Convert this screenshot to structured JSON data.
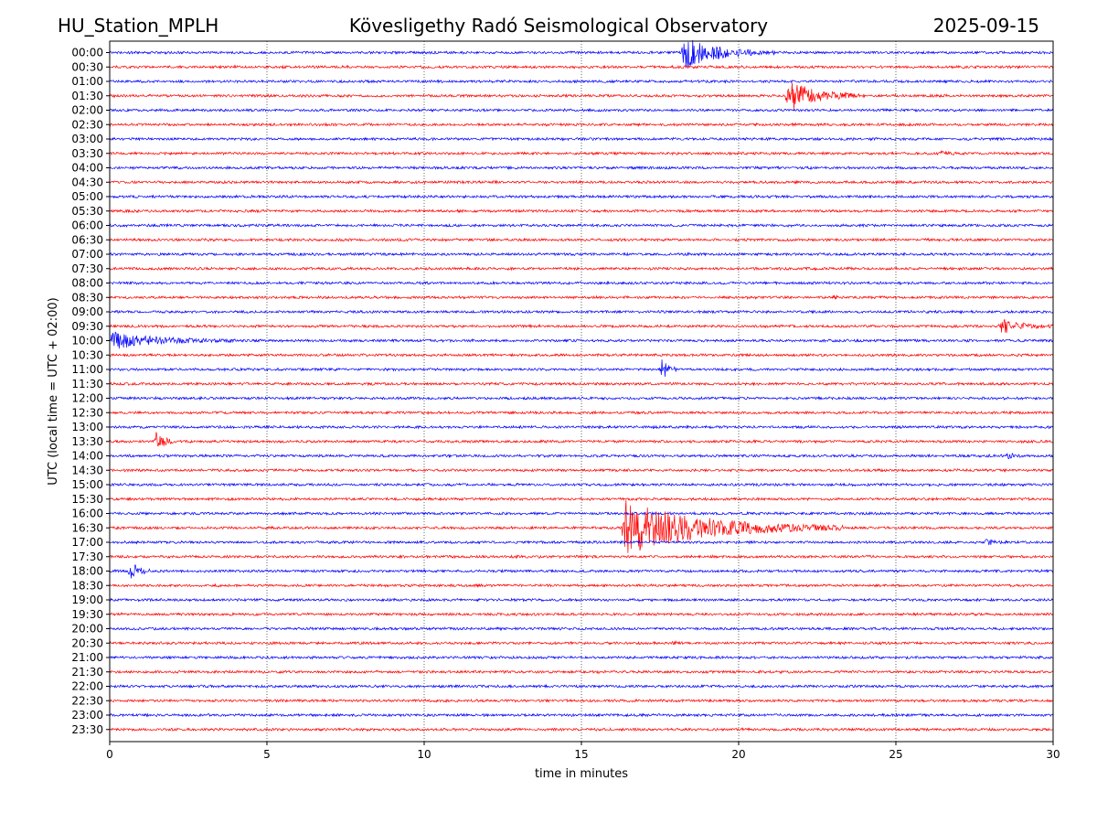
{
  "header": {
    "station": "HU_Station_MPLH",
    "observatory": "Kövesligethy Radó Seismological Observatory",
    "date": "2025-09-15"
  },
  "chart_data": {
    "type": "line",
    "chart_kind": "helicorder",
    "xlabel": "time in minutes",
    "ylabel": "UTC (local time = UTC + 02:00)",
    "xlim": [
      0,
      30
    ],
    "x_ticks": [
      "0",
      "5",
      "10",
      "15",
      "20",
      "25",
      "30"
    ],
    "x_tick_values": [
      0,
      5,
      10,
      15,
      20,
      25,
      30
    ],
    "grid": {
      "vertical_dotted_at_major_ticks": true,
      "horizontal": false
    },
    "row_labels": [
      "00:00",
      "00:30",
      "01:00",
      "01:30",
      "02:00",
      "02:30",
      "03:00",
      "03:30",
      "04:00",
      "04:30",
      "05:00",
      "05:30",
      "06:00",
      "06:30",
      "07:00",
      "07:30",
      "08:00",
      "08:30",
      "09:00",
      "09:30",
      "10:00",
      "10:30",
      "11:00",
      "11:30",
      "12:00",
      "12:30",
      "13:00",
      "13:30",
      "14:00",
      "14:30",
      "15:00",
      "15:30",
      "16:00",
      "16:30",
      "17:00",
      "17:30",
      "18:00",
      "18:30",
      "19:00",
      "19:30",
      "20:00",
      "20:30",
      "21:00",
      "21:30",
      "22:00",
      "22:30",
      "23:00",
      "23:30"
    ],
    "trace_colors": [
      "#0000ff",
      "#ff0000"
    ],
    "events": [
      {
        "row": "00:00",
        "start_min": 18.2,
        "peak_amp": 2.8,
        "duration_min": 3.0
      },
      {
        "row": "01:30",
        "start_min": 21.5,
        "peak_amp": 3.0,
        "duration_min": 2.5
      },
      {
        "row": "03:30",
        "start_min": 26.4,
        "peak_amp": 0.4,
        "duration_min": 0.8
      },
      {
        "row": "08:30",
        "start_min": 23.0,
        "peak_amp": 0.3,
        "duration_min": 0.2
      },
      {
        "row": "09:30",
        "start_min": 28.3,
        "peak_amp": 1.3,
        "duration_min": 1.7
      },
      {
        "row": "10:00",
        "start_min": 0.0,
        "peak_amp": 1.5,
        "duration_min": 4.0
      },
      {
        "row": "11:00",
        "start_min": 17.5,
        "peak_amp": 2.2,
        "duration_min": 0.5
      },
      {
        "row": "13:30",
        "start_min": 1.4,
        "peak_amp": 1.5,
        "duration_min": 0.8
      },
      {
        "row": "14:00",
        "start_min": 28.5,
        "peak_amp": 0.4,
        "duration_min": 0.6
      },
      {
        "row": "16:30",
        "start_min": 16.3,
        "peak_amp": 5.0,
        "duration_min": 7.0
      },
      {
        "row": "17:00",
        "start_min": 27.8,
        "peak_amp": 0.4,
        "duration_min": 0.8
      },
      {
        "row": "18:00",
        "start_min": 0.6,
        "peak_amp": 1.8,
        "duration_min": 0.8
      },
      {
        "row": "20:30",
        "start_min": 17.9,
        "peak_amp": 0.4,
        "duration_min": 0.3
      }
    ]
  }
}
